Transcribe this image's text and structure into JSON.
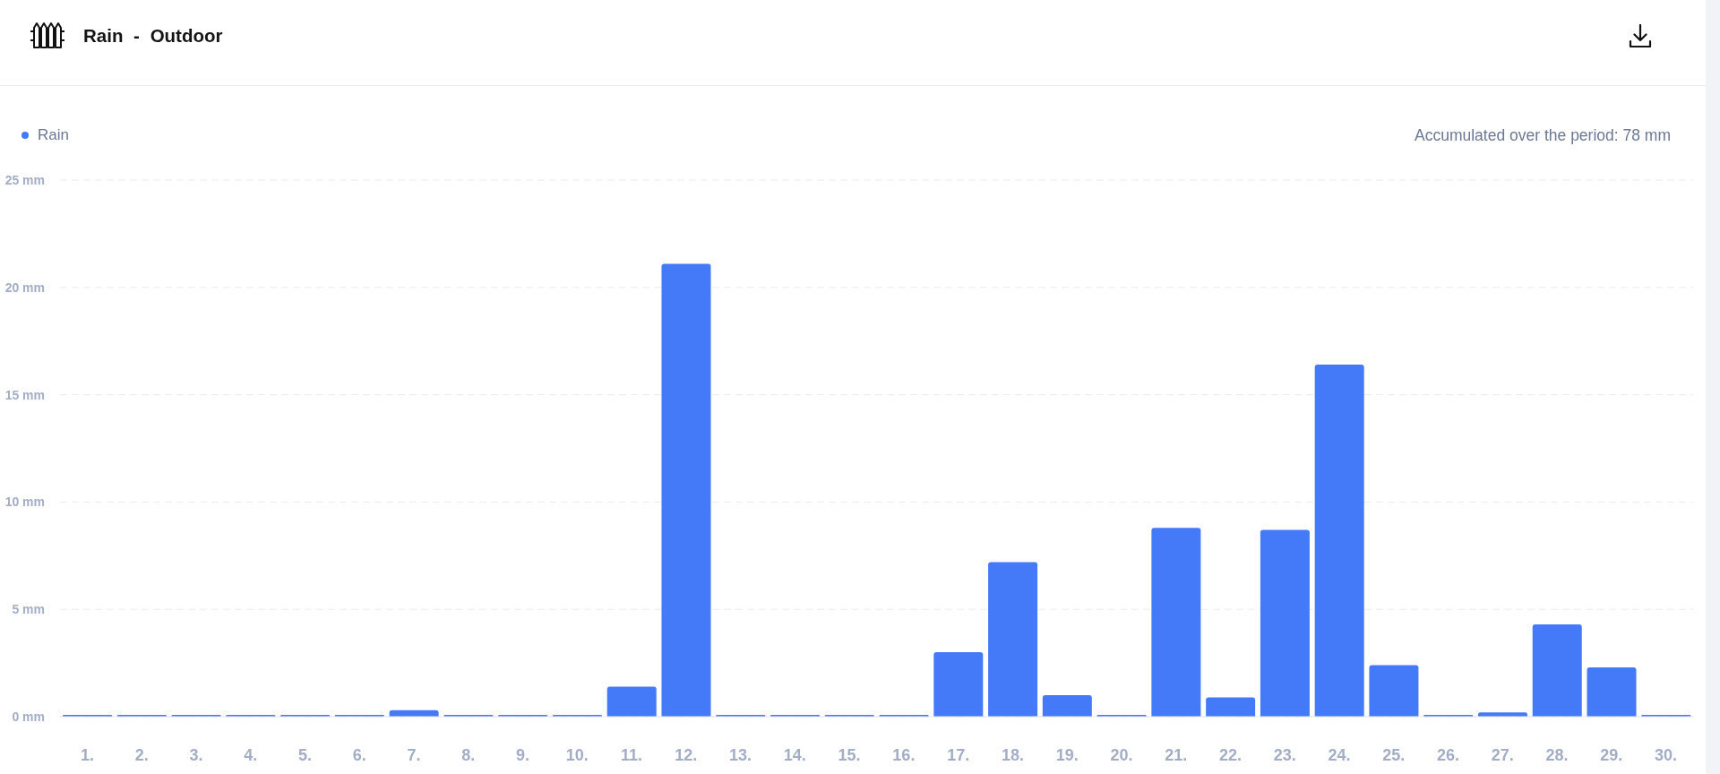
{
  "chart_data": {
    "type": "bar",
    "title": "Rain - Outdoor",
    "categories": [
      "1.",
      "2.",
      "3.",
      "4.",
      "5.",
      "6.",
      "7.",
      "8.",
      "9.",
      "10.",
      "11.",
      "12.",
      "13.",
      "14.",
      "15.",
      "16.",
      "17.",
      "18.",
      "19.",
      "20.",
      "21.",
      "22.",
      "23.",
      "24.",
      "25.",
      "26.",
      "27.",
      "28.",
      "29.",
      "30."
    ],
    "series": [
      {
        "name": "Rain",
        "color": "#4479f7",
        "values": [
          0,
          0,
          0,
          0,
          0,
          0,
          0.3,
          0,
          0,
          0,
          1.4,
          21.1,
          0,
          0,
          0,
          0,
          3,
          7.2,
          1,
          0,
          8.8,
          0.9,
          8.7,
          16.4,
          2.4,
          0,
          0.2,
          4.3,
          2.3,
          0
        ]
      }
    ],
    "ylim": [
      0,
      25
    ],
    "yticks": [
      {
        "value": 0,
        "label": "0 mm"
      },
      {
        "value": 5,
        "label": "5 mm"
      },
      {
        "value": 10,
        "label": "10 mm"
      },
      {
        "value": 15,
        "label": "15 mm"
      },
      {
        "value": 20,
        "label": "20 mm"
      },
      {
        "value": 25,
        "label": "25 mm"
      }
    ],
    "grid": "y",
    "legend": "top left",
    "annotations": [
      "Accumulated over the period: 78 mm"
    ]
  }
}
